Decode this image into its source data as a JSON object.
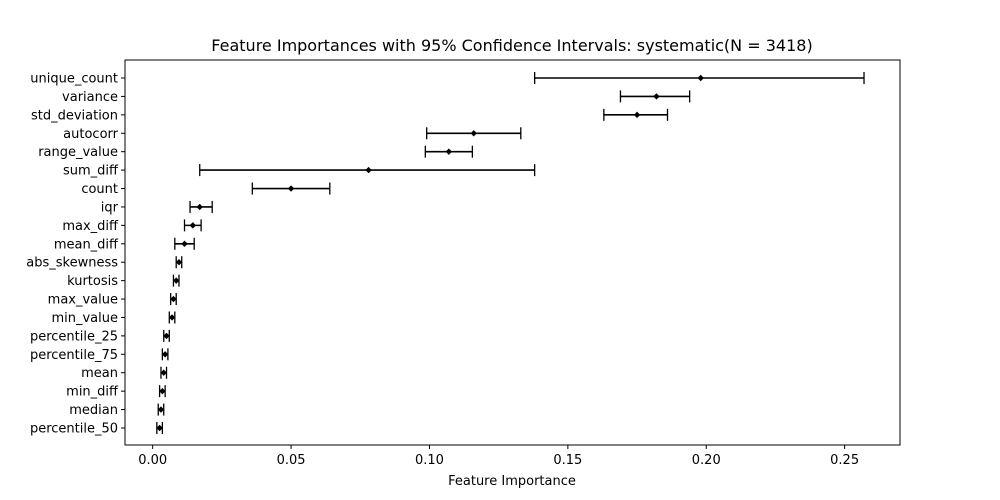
{
  "chart_data": {
    "type": "errorbar",
    "orientation": "horizontal",
    "title": "Feature Importances with 95% Confidence Intervals: systematic(N = 3418)",
    "xlabel": "Feature Importance",
    "ylabel": "",
    "xlim": [
      -0.01,
      0.27
    ],
    "xticks": [
      0.0,
      0.05,
      0.1,
      0.15,
      0.2,
      0.25
    ],
    "xtick_labels": [
      "0.00",
      "0.05",
      "0.10",
      "0.15",
      "0.20",
      "0.25"
    ],
    "grid": false,
    "features": [
      {
        "name": "unique_count",
        "value": 0.198,
        "lower": 0.138,
        "upper": 0.257
      },
      {
        "name": "variance",
        "value": 0.182,
        "lower": 0.169,
        "upper": 0.194
      },
      {
        "name": "std_deviation",
        "value": 0.175,
        "lower": 0.163,
        "upper": 0.186
      },
      {
        "name": "autocorr",
        "value": 0.116,
        "lower": 0.099,
        "upper": 0.133
      },
      {
        "name": "range_value",
        "value": 0.107,
        "lower": 0.0985,
        "upper": 0.1155
      },
      {
        "name": "sum_diff",
        "value": 0.078,
        "lower": 0.017,
        "upper": 0.138
      },
      {
        "name": "count",
        "value": 0.05,
        "lower": 0.036,
        "upper": 0.064
      },
      {
        "name": "iqr",
        "value": 0.017,
        "lower": 0.0135,
        "upper": 0.0215
      },
      {
        "name": "max_diff",
        "value": 0.0145,
        "lower": 0.0115,
        "upper": 0.0175
      },
      {
        "name": "mean_diff",
        "value": 0.0115,
        "lower": 0.008,
        "upper": 0.015
      },
      {
        "name": "abs_skewness",
        "value": 0.0095,
        "lower": 0.0085,
        "upper": 0.0105
      },
      {
        "name": "kurtosis",
        "value": 0.0085,
        "lower": 0.0075,
        "upper": 0.0095
      },
      {
        "name": "max_value",
        "value": 0.0075,
        "lower": 0.0065,
        "upper": 0.0085
      },
      {
        "name": "min_value",
        "value": 0.007,
        "lower": 0.006,
        "upper": 0.008
      },
      {
        "name": "percentile_25",
        "value": 0.005,
        "lower": 0.004,
        "upper": 0.006
      },
      {
        "name": "percentile_75",
        "value": 0.0045,
        "lower": 0.0035,
        "upper": 0.0055
      },
      {
        "name": "mean",
        "value": 0.004,
        "lower": 0.003,
        "upper": 0.005
      },
      {
        "name": "min_diff",
        "value": 0.0035,
        "lower": 0.0025,
        "upper": 0.0045
      },
      {
        "name": "median",
        "value": 0.003,
        "lower": 0.002,
        "upper": 0.004
      },
      {
        "name": "percentile_50",
        "value": 0.0025,
        "lower": 0.0015,
        "upper": 0.0035
      }
    ]
  }
}
